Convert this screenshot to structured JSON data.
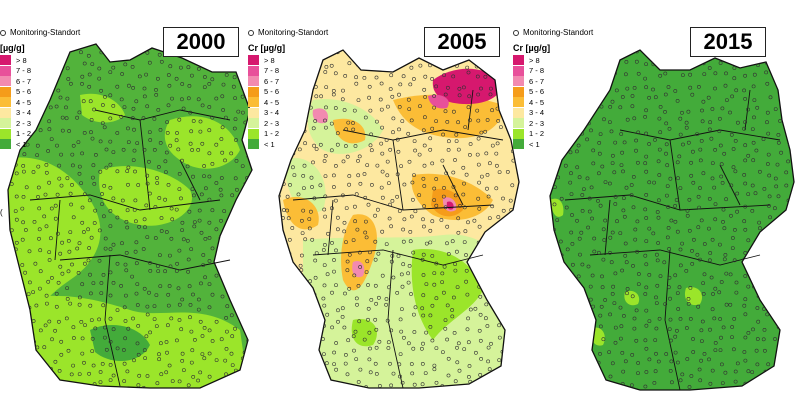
{
  "legend": {
    "station_label": "Monitoring-Standort",
    "unit_label": "Cr [µg/g]",
    "partial_unit_label": "[µg/g]",
    "classes": [
      {
        "label": "> 8",
        "color": "#d6186e"
      },
      {
        "label": "7 - 8",
        "color": "#e8509a"
      },
      {
        "label": "6 - 7",
        "color": "#f28ab0"
      },
      {
        "label": "5 - 6",
        "color": "#f59c1a"
      },
      {
        "label": "4 - 5",
        "color": "#fbbd36"
      },
      {
        "label": "3 - 4",
        "color": "#fde8a0"
      },
      {
        "label": "2 - 3",
        "color": "#d5f39a"
      },
      {
        "label": "1 - 2",
        "color": "#9be52a"
      },
      {
        "label": "< 1",
        "color": "#43ab3a"
      }
    ]
  },
  "panels": [
    {
      "year": "2000",
      "base": "#52b33b",
      "light": "#9be52a"
    },
    {
      "year": "2005",
      "base": "#fde8a0",
      "light": "#d5f39a"
    },
    {
      "year": "2015",
      "base": "#43ab3a",
      "light": "#9be52a"
    }
  ]
}
